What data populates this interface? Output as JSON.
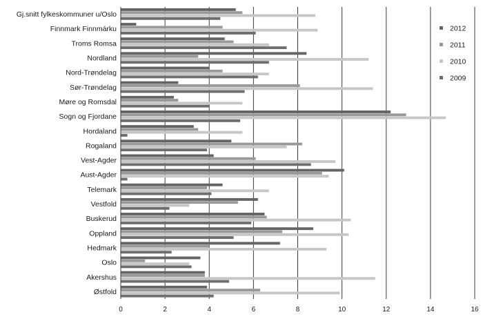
{
  "chart_data": {
    "type": "bar",
    "orientation": "horizontal",
    "categories": [
      "Gj.snitt fylkeskommuner u/Oslo",
      "Finnmark Finnmárku",
      "Troms Romsa",
      "Nordland",
      "Nord-Trøndelag",
      "Sør-Trøndelag",
      "Møre og Romsdal",
      "Sogn og Fjordane",
      "Hordaland",
      "Rogaland",
      "Vest-Agder",
      "Aust-Agder",
      "Telemark",
      "Vestfold",
      "Buskerud",
      "Oppland",
      "Hedmark",
      "Oslo",
      "Akershus",
      "Østfold"
    ],
    "series": [
      {
        "name": "2012",
        "color": "#646464",
        "values": [
          5.2,
          0.7,
          4.7,
          8.4,
          4.0,
          2.6,
          2.4,
          12.2,
          3.3,
          5.0,
          4.2,
          10.1,
          4.6,
          6.2,
          6.5,
          8.7,
          7.2,
          3.6,
          3.8,
          3.9
        ]
      },
      {
        "name": "2011",
        "color": "#999999",
        "values": [
          5.5,
          4.6,
          5.1,
          3.5,
          4.6,
          8.1,
          2.6,
          12.9,
          3.5,
          8.2,
          6.1,
          9.1,
          3.9,
          5.3,
          6.6,
          7.3,
          4.0,
          1.1,
          3.8,
          6.3
        ]
      },
      {
        "name": "2010",
        "color": "#c7c7c7",
        "values": [
          8.8,
          8.9,
          6.7,
          11.2,
          6.7,
          11.4,
          5.5,
          14.7,
          5.5,
          7.5,
          9.7,
          9.4,
          6.7,
          3.1,
          10.4,
          10.3,
          9.3,
          3.1,
          11.5,
          9.9
        ]
      },
      {
        "name": "2009",
        "color": "#6e6e6e",
        "values": [
          4.5,
          6.1,
          7.5,
          6.7,
          6.2,
          5.6,
          4.0,
          5.4,
          0.3,
          3.9,
          8.6,
          0.3,
          4.1,
          2.2,
          5.9,
          5.1,
          2.3,
          3.2,
          4.9,
          4.2
        ]
      }
    ],
    "xlim": [
      0,
      16
    ],
    "xticks": [
      "0",
      "2",
      "4",
      "6",
      "8",
      "10",
      "12",
      "14",
      "16"
    ],
    "grid": true,
    "legend": {
      "position": "right",
      "order": [
        "2012",
        "2011",
        "2010",
        "2009"
      ]
    },
    "title": "",
    "xlabel": "",
    "ylabel": ""
  }
}
